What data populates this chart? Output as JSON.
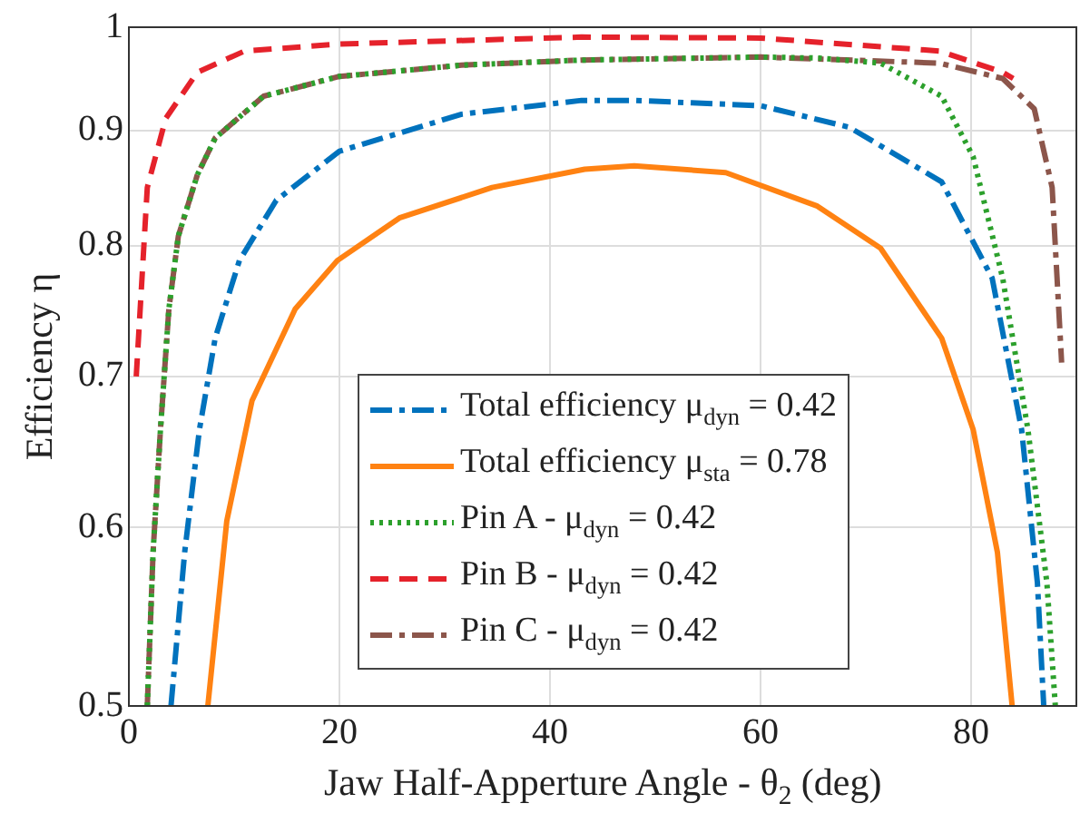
{
  "chart_data": {
    "type": "line",
    "xlabel": "Jaw Half-Apperture Angle - θ$_{2}$ (deg)",
    "ylabel": "Efficiency η",
    "log": "y",
    "grid": true,
    "legend": "bottom",
    "marker": "none",
    "xlim": [
      0,
      90
    ],
    "xticks": [
      0,
      20,
      40,
      60,
      80
    ],
    "ylim": [
      0.5,
      1
    ],
    "yticks": [
      0.5,
      0.6,
      0.7,
      0.8,
      0.9,
      1
    ],
    "series": [
      {
        "name": "Total efficiency μ$_{dyn}$ = 0.42",
        "color": "#0072bd",
        "line_style": "dashdot",
        "x": [
          4,
          5.3,
          6.7,
          8.2,
          10.5,
          14,
          20,
          31.6,
          43,
          48,
          60,
          68.4,
          77.2,
          82,
          84.8,
          86.3,
          86.9
        ],
        "values": [
          0.5,
          0.585,
          0.663,
          0.728,
          0.788,
          0.838,
          0.881,
          0.915,
          0.928,
          0.928,
          0.923,
          0.903,
          0.854,
          0.774,
          0.663,
          0.567,
          0.5
        ]
      },
      {
        "name": "Total efficiency μ$_{sta}$ = 0.78",
        "color": "#ff8212",
        "line_style": "solid",
        "x": [
          7.5,
          9.3,
          11.7,
          15.8,
          19.8,
          25.7,
          34.5,
          43.3,
          48,
          56.7,
          65.4,
          71.4,
          77.2,
          80.2,
          82.5,
          83.9
        ],
        "values": [
          0.5,
          0.604,
          0.683,
          0.75,
          0.788,
          0.823,
          0.849,
          0.865,
          0.868,
          0.862,
          0.833,
          0.798,
          0.728,
          0.663,
          0.585,
          0.5
        ]
      },
      {
        "name": "Pin A - μ$_{dyn}$ = 0.42",
        "color": "#2ca02c",
        "line_style": "dotted",
        "x": [
          1.75,
          2.3,
          3,
          3.8,
          4.7,
          6.5,
          8.2,
          12.8,
          20,
          31.6,
          43,
          60,
          65.5,
          71.4,
          77.2,
          80.2,
          83,
          85.4,
          87.2,
          88
        ],
        "values": [
          0.5,
          0.585,
          0.663,
          0.75,
          0.808,
          0.86,
          0.893,
          0.932,
          0.951,
          0.962,
          0.967,
          0.97,
          0.969,
          0.964,
          0.932,
          0.876,
          0.774,
          0.663,
          0.567,
          0.5
        ]
      },
      {
        "name": "Pin B - μ$_{dyn}$ = 0.42",
        "color": "#e5222b",
        "line_style": "dashed",
        "x": [
          0.7,
          1.75,
          3.5,
          6.5,
          11,
          20,
          43,
          60,
          77,
          83,
          84
        ],
        "values": [
          0.7,
          0.849,
          0.911,
          0.955,
          0.976,
          0.983,
          0.99,
          0.989,
          0.976,
          0.955,
          0.949
        ]
      },
      {
        "name": "Pin C - μ$_{dyn}$ = 0.42",
        "color": "#8c564b",
        "line_style": "dashdot",
        "x": [
          1.75,
          2.3,
          3,
          3.8,
          4.7,
          6.5,
          8.2,
          12.8,
          20,
          31.6,
          43,
          60,
          77,
          83,
          86,
          87.7,
          88.6
        ],
        "values": [
          0.5,
          0.585,
          0.663,
          0.75,
          0.808,
          0.86,
          0.893,
          0.932,
          0.951,
          0.962,
          0.967,
          0.97,
          0.964,
          0.949,
          0.92,
          0.849,
          0.71
        ]
      }
    ]
  }
}
